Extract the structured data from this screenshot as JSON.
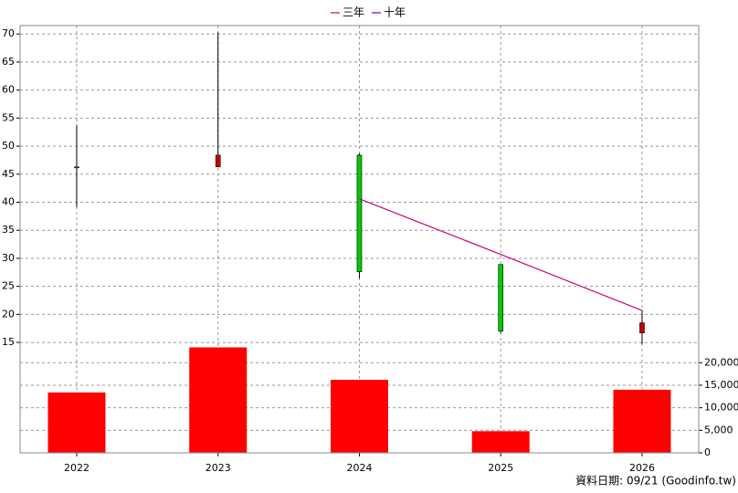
{
  "chart_data": [
    {
      "type": "candlestick",
      "open": [
        46.3,
        46.3,
        48.4,
        28.9,
        16.7
      ],
      "high": [
        53.7,
        70.3,
        48.7,
        28.9,
        20.7
      ],
      "low": [
        39.1,
        46.3,
        26.4,
        16.7,
        14.7
      ],
      "close": [
        46.2,
        48.4,
        27.6,
        17.0,
        18.5
      ],
      "up_color": "#cc0000",
      "down_color": "#00cc00",
      "series": [
        {
          "name": "三年",
          "color": "#cc0077",
          "values": [
            null,
            null,
            40.6,
            30.7,
            20.7
          ]
        },
        {
          "name": "十年",
          "color": "#6600cc",
          "values": [
            null,
            null,
            null,
            null,
            null
          ]
        }
      ],
      "ylim": [
        14.2,
        71.5
      ],
      "yticks": [
        15,
        20,
        25,
        30,
        35,
        40,
        45,
        50,
        55,
        60,
        65,
        70
      ],
      "grid": true
    },
    {
      "type": "bar",
      "categories": [
        "2022",
        "2023",
        "2024",
        "2025",
        "2026"
      ],
      "values": [
        13400,
        23400,
        16200,
        4800,
        14000
      ],
      "color": "#ff0000",
      "ylim": [
        0,
        23500
      ],
      "yticks": [
        0,
        {
          "value": 5000,
          "label": "5,000"
        },
        {
          "value": 10000,
          "label": "10,000"
        },
        {
          "value": 15000,
          "label": "15,000"
        },
        {
          "value": 20000,
          "label": "20,000"
        }
      ],
      "grid": true
    }
  ],
  "footer": "資料日期: 09/21  (Goodinfo.tw)"
}
